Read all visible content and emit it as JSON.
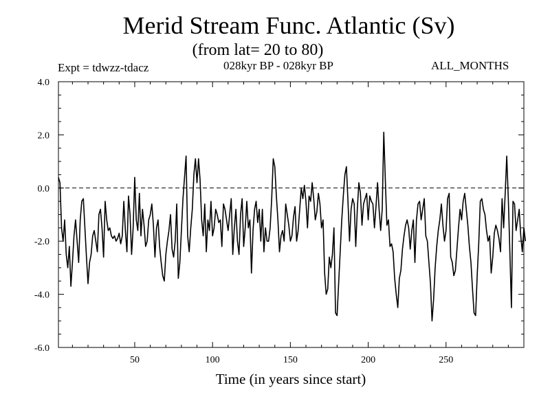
{
  "chart_data": {
    "type": "line",
    "title": "Merid Stream Func. Atlantic (Sv)",
    "subtitle": "(from lat= 20 to 80)",
    "annotations": {
      "experiment": "Expt = tdwzz-tdacz",
      "period": "028kyr BP - 028kyr BP",
      "months": "ALL_MONTHS"
    },
    "xlabel": "Time (in years since start)",
    "ylabel": "",
    "xlim": [
      1,
      300
    ],
    "ylim": [
      -6.0,
      4.0
    ],
    "x_ticks": [
      50,
      100,
      150,
      200,
      250
    ],
    "x_tick_labels": [
      "50",
      "100",
      "150",
      "200",
      "250"
    ],
    "y_ticks": [
      -6.0,
      -4.0,
      -2.0,
      0.0,
      2.0,
      4.0
    ],
    "y_tick_labels": [
      "-6.0",
      "-4.0",
      "-2.0",
      "0.0",
      "2.0",
      "4.0"
    ],
    "reference_line": 0.0,
    "series": [
      {
        "name": "Merid Stream Func. Atlantic",
        "x_start": 1,
        "x_step": 1,
        "values": [
          0.4,
          0.2,
          -1.5,
          -2.0,
          -1.2,
          -2.5,
          -3.0,
          -2.2,
          -3.7,
          -2.8,
          -1.8,
          -1.2,
          -2.0,
          -2.8,
          -1.2,
          -0.5,
          -0.4,
          -1.5,
          -2.6,
          -3.6,
          -2.8,
          -2.5,
          -1.8,
          -1.6,
          -2.0,
          -2.4,
          -1.0,
          -0.8,
          -1.5,
          -2.6,
          -0.5,
          -1.2,
          -1.6,
          -1.5,
          -1.8,
          -1.9,
          -1.8,
          -2.0,
          -1.9,
          -1.7,
          -2.1,
          -1.8,
          -0.5,
          -1.6,
          -2.4,
          -0.3,
          -1.0,
          -2.5,
          -1.5,
          0.4,
          -1.2,
          -1.6,
          -0.2,
          -1.8,
          -0.8,
          -1.4,
          -2.2,
          -2.0,
          -1.2,
          -1.0,
          -0.6,
          -1.4,
          -2.6,
          -1.5,
          -1.2,
          -2.2,
          -2.8,
          -3.3,
          -3.5,
          -2.5,
          -2.0,
          -1.6,
          -1.0,
          -2.3,
          -2.6,
          -2.0,
          -0.6,
          -3.4,
          -2.8,
          -1.6,
          -0.4,
          0.4,
          1.2,
          -1.8,
          -2.4,
          -1.5,
          -0.8,
          0.5,
          1.1,
          0.2,
          1.1,
          0.3,
          -1.2,
          -1.8,
          -0.6,
          -2.4,
          -1.2,
          -1.6,
          -0.5,
          -1.8,
          -1.5,
          -0.8,
          -1.0,
          -1.3,
          -1.2,
          -2.2,
          -0.6,
          -0.8,
          -1.2,
          -1.6,
          -1.0,
          -0.4,
          -2.5,
          -1.5,
          -0.8,
          -2.0,
          -2.5,
          -1.0,
          -0.4,
          -2.2,
          -1.5,
          -0.5,
          -1.5,
          -1.2,
          -3.2,
          -1.6,
          -0.8,
          -0.5,
          -1.3,
          -0.8,
          -2.0,
          -0.8,
          -2.4,
          -1.5,
          -2.0,
          -2.0,
          -1.5,
          -0.4,
          1.1,
          0.8,
          -0.3,
          -1.2,
          -2.4,
          -1.8,
          -1.6,
          -2.0,
          -0.6,
          -1.0,
          -1.4,
          -2.0,
          -1.8,
          -1.1,
          -0.7,
          -2.0,
          -1.6,
          -0.8,
          0.0,
          -0.4,
          0.1,
          -0.5,
          -1.5,
          -0.3,
          -0.5,
          0.2,
          -0.4,
          -1.2,
          -0.9,
          -0.2,
          -0.6,
          -1.5,
          -1.2,
          -3.2,
          -4.0,
          -3.8,
          -2.6,
          -3.0,
          -2.5,
          -1.5,
          -4.7,
          -4.8,
          -3.6,
          -2.4,
          -1.2,
          -0.3,
          0.5,
          0.8,
          -0.5,
          -2.0,
          -0.8,
          -0.4,
          -0.6,
          -2.2,
          -0.8,
          0.2,
          -0.2,
          -1.4,
          -0.6,
          -0.4,
          -0.2,
          -1.2,
          -0.3,
          -0.5,
          -0.6,
          -1.5,
          -0.7,
          0.2,
          -0.8,
          -1.6,
          -0.8,
          2.1,
          0.3,
          -1.4,
          -1.2,
          -2.2,
          -2.1,
          -2.4,
          -3.4,
          -4.0,
          -4.5,
          -3.4,
          -3.1,
          -2.3,
          -1.8,
          -1.4,
          -1.2,
          -1.5,
          -2.3,
          -1.6,
          -1.2,
          -2.8,
          -1.2,
          -0.6,
          -0.5,
          -1.2,
          -0.8,
          -0.4,
          -1.8,
          -2.0,
          -2.8,
          -3.6,
          -5.0,
          -4.2,
          -3.0,
          -2.2,
          -1.6,
          -1.2,
          -0.6,
          -1.4,
          -2.0,
          -1.6,
          -0.4,
          -0.2,
          -2.6,
          -2.8,
          -3.3,
          -3.1,
          -2.3,
          -1.5,
          -0.8,
          -1.2,
          -0.5,
          -0.2,
          -0.8,
          -1.4,
          -2.2,
          -2.8,
          -3.8,
          -4.7,
          -4.8,
          -3.3,
          -2.1,
          -0.5,
          -0.4,
          -0.8,
          -1.0,
          -1.6,
          -2.0,
          -1.8,
          -3.2,
          -2.6,
          -1.7,
          -1.4,
          -1.6,
          -1.9,
          -2.4,
          -0.4,
          -1.5,
          -0.2,
          1.2,
          -0.4,
          -2.4,
          -4.5,
          -0.5,
          -0.6,
          -1.6,
          -1.2,
          -0.8,
          -1.8,
          -2.4,
          -1.5,
          -2.0
        ]
      }
    ]
  }
}
